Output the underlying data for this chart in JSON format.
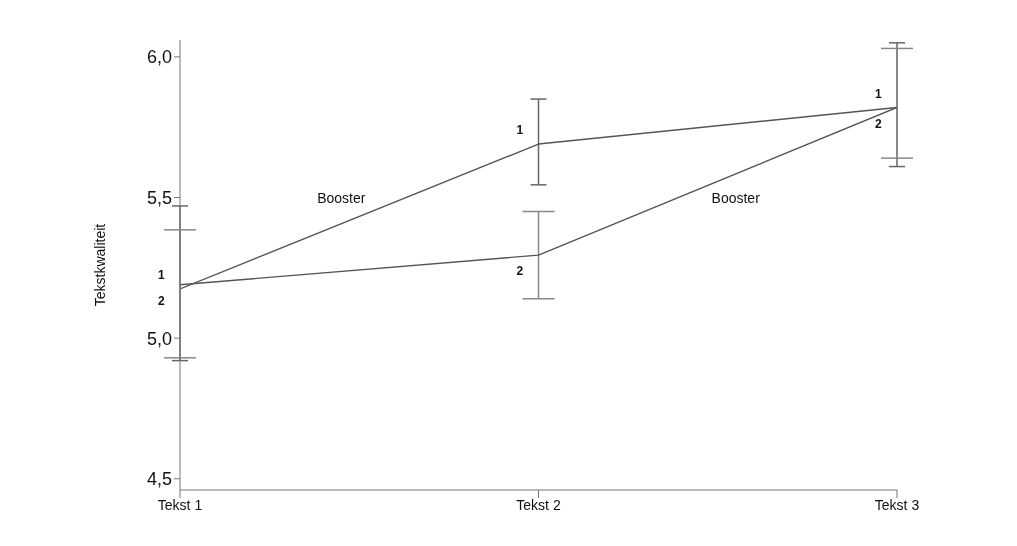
{
  "chart_data": {
    "type": "line",
    "ylabel": "Tekstkwaliteit",
    "categories": [
      "Tekst 1",
      "Tekst 2",
      "Tekst 3"
    ],
    "series": [
      {
        "name": "1",
        "color": "#555555",
        "values": [
          5.175,
          5.69,
          5.82
        ],
        "errors": [
          [
            4.92,
            5.47
          ],
          [
            5.545,
            5.85
          ],
          [
            5.61,
            6.05
          ]
        ]
      },
      {
        "name": "2",
        "color": "#555555",
        "values": [
          5.19,
          5.295,
          5.82
        ],
        "errors": [
          [
            4.93,
            5.385
          ],
          [
            5.14,
            5.45
          ],
          [
            5.64,
            6.03
          ]
        ]
      }
    ],
    "annotations": [
      "Booster",
      "Booster"
    ],
    "ylim": [
      4.46,
      6.06
    ],
    "yticks": [
      {
        "value": 4.5,
        "label": "4,5"
      },
      {
        "value": 5.0,
        "label": "5,0"
      },
      {
        "value": 5.5,
        "label": "5,5"
      },
      {
        "value": 6.0,
        "label": "6,0"
      }
    ],
    "grid": false,
    "legend": false,
    "marker": "none",
    "line_style": "solid"
  }
}
